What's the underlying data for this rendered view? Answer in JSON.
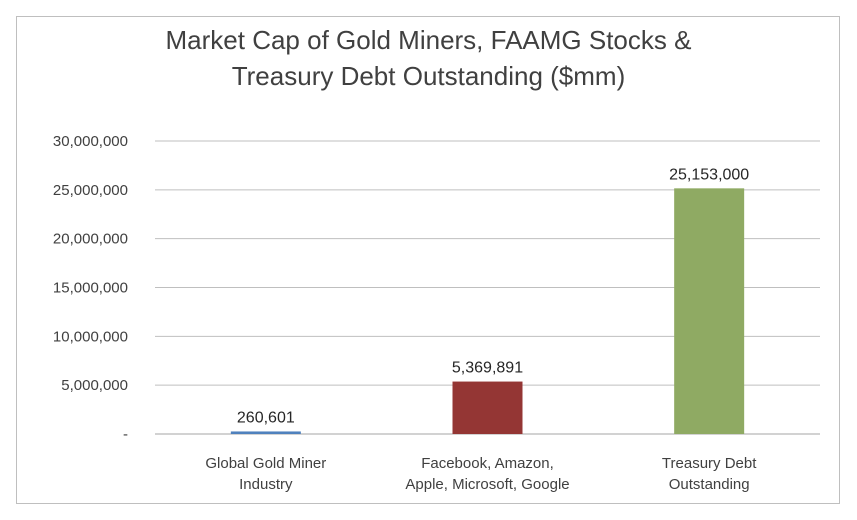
{
  "chart_data": {
    "type": "bar",
    "title_lines": [
      "Market Cap of Gold Miners, FAAMG Stocks  &",
      "Treasury Debt Outstanding ($mm)"
    ],
    "categories": [
      [
        "Global Gold Miner",
        "Industry"
      ],
      [
        "Facebook, Amazon,",
        "Apple, Microsoft, Google"
      ],
      [
        "Treasury Debt",
        "Outstanding"
      ]
    ],
    "values": [
      260601,
      5369891,
      25153000
    ],
    "data_labels": [
      "260,601",
      "5,369,891",
      "25,153,000"
    ],
    "colors": [
      "#4f81bd",
      "#943634",
      "#8faa63"
    ],
    "ylim": [
      0,
      30000000
    ],
    "yticks": [
      0,
      5000000,
      10000000,
      15000000,
      20000000,
      25000000,
      30000000
    ],
    "ytick_labels": [
      "-",
      "5,000,000",
      "10,000,000",
      "15,000,000",
      "20,000,000",
      "25,000,000",
      "30,000,000"
    ],
    "grid": true,
    "legend": "none"
  }
}
